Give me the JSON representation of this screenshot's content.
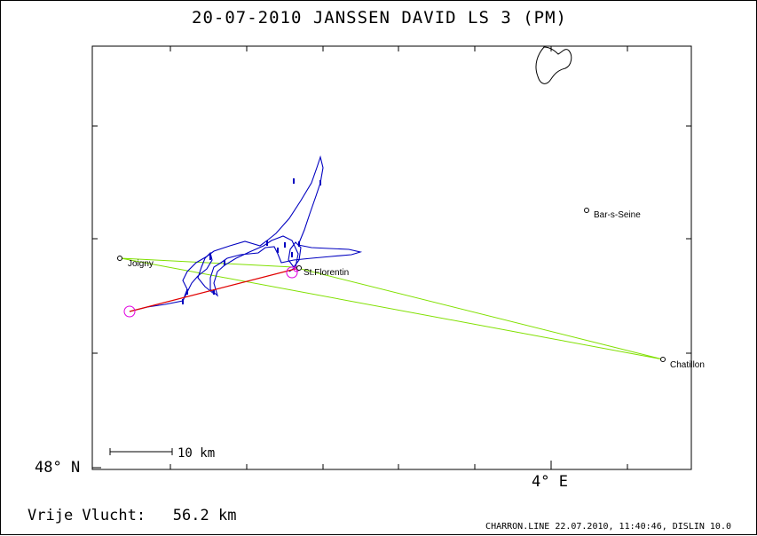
{
  "title": "20-07-2010   JANSSEN DAVID   LS 3 (PM)",
  "axes": {
    "lat_label": "48° N",
    "lon_label": "4° E"
  },
  "scale_bar": {
    "label": "10 km"
  },
  "places": [
    {
      "id": "joigny",
      "name": "Joigny"
    },
    {
      "id": "st-florentin",
      "name": "St.Florentin"
    },
    {
      "id": "bar-s-seine",
      "name": "Bar-s-Seine"
    },
    {
      "id": "chatillon",
      "name": "Chatillon"
    }
  ],
  "colors": {
    "task": "#80e000",
    "track": "#0000c0",
    "free_flight": "#e00000",
    "marker": "#e000e0",
    "frame": "#000000"
  },
  "footer": {
    "distance_label": "Vrije Vlucht:",
    "distance_value": "56.2 km",
    "credits": "CHARRON.LINE 22.07.2010, 11:40:46, DISLIN 10.0"
  }
}
